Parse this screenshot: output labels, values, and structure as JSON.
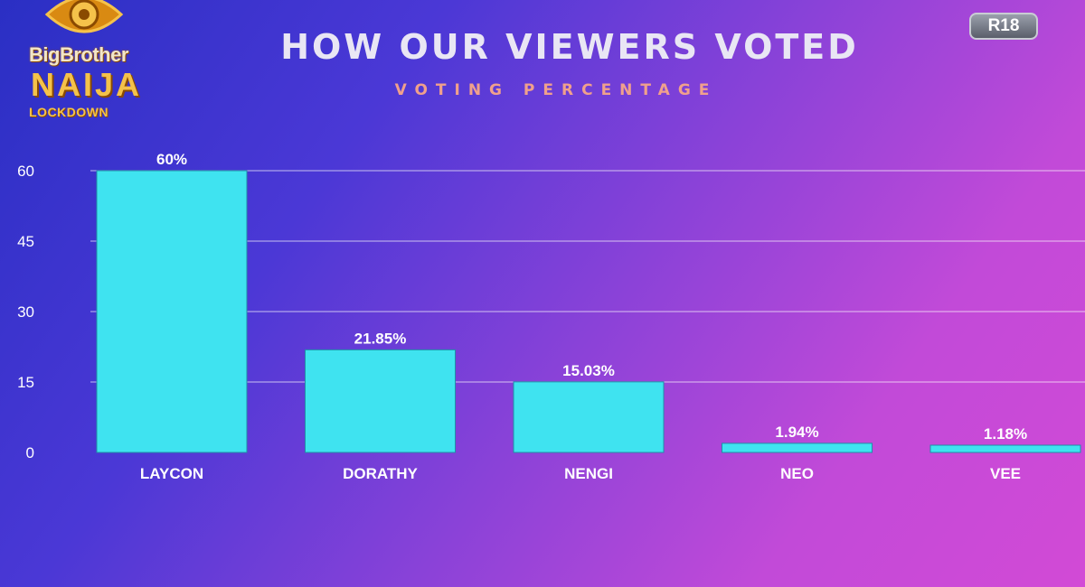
{
  "header": {
    "logo": {
      "line1": "BigBrother",
      "line2": "NAIJA",
      "line3": "LOCKDOWN"
    },
    "rating_badge": "R18"
  },
  "colors": {
    "bar": "#3fe3f0",
    "bar_edge": "#1f8fa8",
    "gridline": "#ffffff",
    "title": "#e9e6f4",
    "subtitle": "#f0a08c"
  },
  "chart_data": {
    "type": "bar",
    "title": "HOW OUR VIEWERS VOTED",
    "subtitle": "VOTING PERCENTAGE",
    "categories": [
      "LAYCON",
      "DORATHY",
      "NENGI",
      "NEO",
      "VEE"
    ],
    "values": [
      60,
      21.85,
      15.03,
      1.94,
      1.18
    ],
    "data_labels": [
      "60%",
      "21.85%",
      "15.03%",
      "1.94%",
      "1.18%"
    ],
    "yticks": [
      0,
      15,
      30,
      45,
      60
    ],
    "ylim": [
      0,
      60
    ],
    "xlabel": "",
    "ylabel": "",
    "grid": true,
    "legend": "none"
  }
}
